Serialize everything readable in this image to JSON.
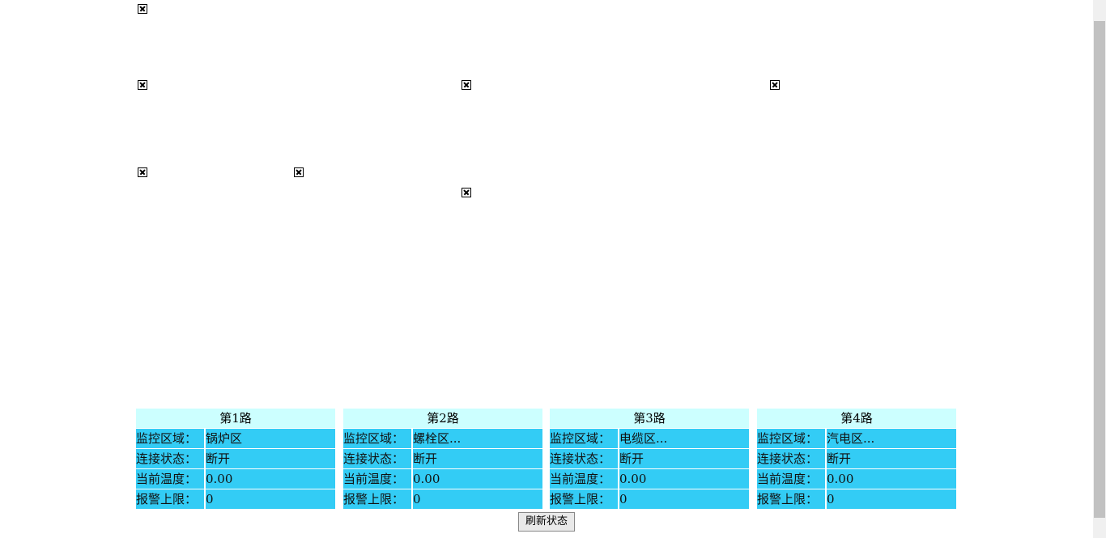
{
  "panels": [
    {
      "title": "第1路",
      "rows": [
        {
          "label": "监控区域：",
          "value": "锅炉区"
        },
        {
          "label": "连接状态：",
          "value": "断开"
        },
        {
          "label": "当前温度：",
          "value": "0.00"
        },
        {
          "label": "报警上限：",
          "value": "0"
        }
      ]
    },
    {
      "title": "第2路",
      "rows": [
        {
          "label": "监控区域：",
          "value": "螺栓区..."
        },
        {
          "label": "连接状态：",
          "value": "断开"
        },
        {
          "label": "当前温度：",
          "value": "0.00"
        },
        {
          "label": "报警上限：",
          "value": "0"
        }
      ]
    },
    {
      "title": "第3路",
      "rows": [
        {
          "label": "监控区域：",
          "value": "电缆区..."
        },
        {
          "label": "连接状态：",
          "value": "断开"
        },
        {
          "label": "当前温度：",
          "value": "0.00"
        },
        {
          "label": "报警上限：",
          "value": "0"
        }
      ]
    },
    {
      "title": "第4路",
      "rows": [
        {
          "label": "监控区域：",
          "value": "汽电区..."
        },
        {
          "label": "连接状态：",
          "value": "断开"
        },
        {
          "label": "当前温度：",
          "value": "0.00"
        },
        {
          "label": "报警上限：",
          "value": "0"
        }
      ]
    }
  ],
  "button": "刷新状态"
}
